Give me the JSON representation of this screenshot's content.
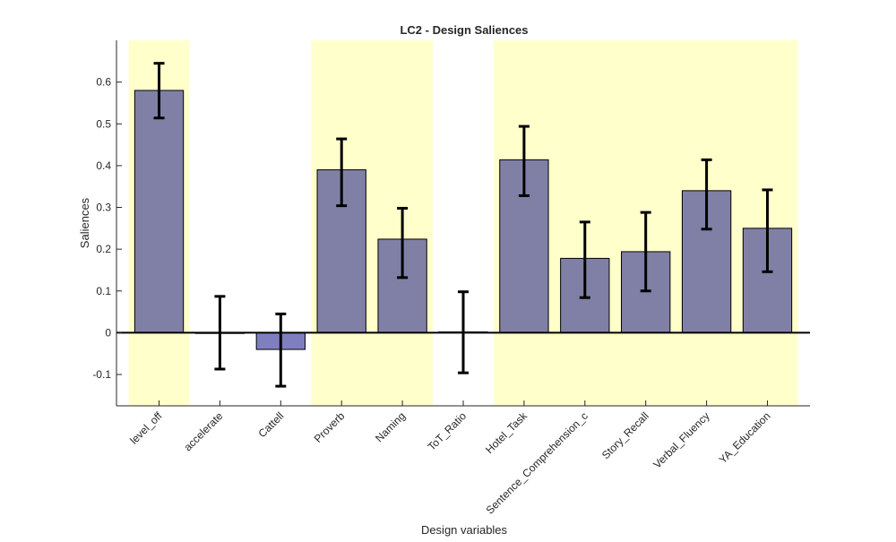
{
  "chart_data": {
    "type": "bar",
    "title": "LC2 - Design Saliences",
    "xlabel": "Design variables",
    "ylabel": "Saliences",
    "ylim": [
      -0.175,
      0.7
    ],
    "yticks": [
      -0.1,
      0,
      0.1,
      0.2,
      0.3,
      0.4,
      0.5,
      0.6
    ],
    "ytick_labels": [
      "-0.1",
      "0",
      "0.1",
      "0.2",
      "0.3",
      "0.4",
      "0.5",
      "0.6"
    ],
    "grid": false,
    "categories": [
      "level_off",
      "accelerate",
      "Cattell",
      "Proverb",
      "Naming",
      "ToT_Ratio",
      "Hotel_Task",
      "Sentence_Comprehension_c",
      "Story_Recall",
      "Verbal_Fluency",
      "YA_Education"
    ],
    "values": [
      0.58,
      0.0,
      -0.04,
      0.39,
      0.224,
      0.002,
      0.414,
      0.178,
      0.194,
      0.34,
      0.25
    ],
    "ci_lower": [
      0.514,
      -0.087,
      -0.128,
      0.304,
      0.132,
      -0.096,
      0.328,
      0.084,
      0.1,
      0.248,
      0.146
    ],
    "ci_upper": [
      0.645,
      0.087,
      0.045,
      0.464,
      0.298,
      0.098,
      0.494,
      0.265,
      0.288,
      0.414,
      0.342
    ],
    "significant": [
      true,
      false,
      false,
      true,
      true,
      false,
      true,
      true,
      true,
      true,
      true
    ],
    "colors": {
      "bar_significant": "#8080a6",
      "bar_nonsignificant": "#7f7fbf",
      "highlight": "#ffffcc",
      "errorbar": "#000000",
      "axis": "#262626"
    }
  }
}
